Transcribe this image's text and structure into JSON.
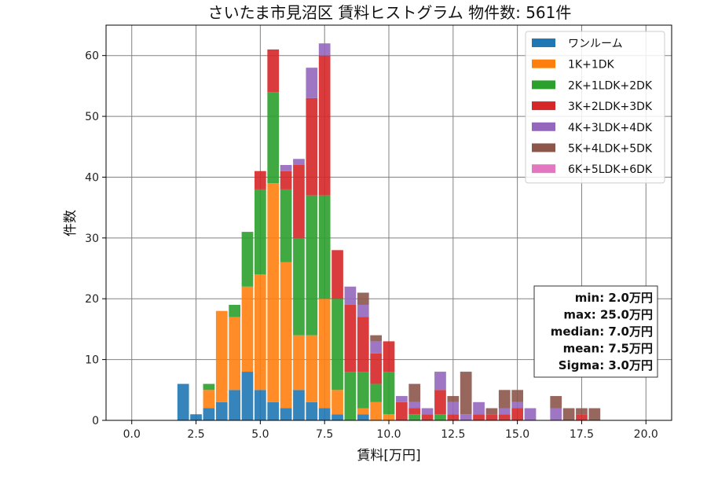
{
  "chart_data": {
    "type": "bar",
    "stacked": true,
    "title": "さいたま市見沼区 賃料ヒストグラム 物件数: 561件",
    "xlabel": "賃料[万円]",
    "ylabel": "件数",
    "xlim": [
      -1.0,
      21.0
    ],
    "ylim": [
      0,
      65
    ],
    "xticks": [
      "0.0",
      "2.5",
      "5.0",
      "7.5",
      "10.0",
      "12.5",
      "15.0",
      "17.5",
      "20.0"
    ],
    "yticks": [
      "0",
      "10",
      "20",
      "30",
      "40",
      "50",
      "60"
    ],
    "grid": true,
    "legend_position": "top-right",
    "x": [
      2.0,
      2.5,
      3.0,
      3.5,
      4.0,
      4.5,
      5.0,
      5.5,
      6.0,
      6.5,
      7.0,
      7.5,
      8.0,
      8.5,
      9.0,
      9.5,
      10.0,
      10.5,
      11.0,
      11.5,
      12.0,
      12.5,
      13.0,
      13.5,
      14.0,
      14.5,
      15.0,
      15.5,
      16.0,
      16.5,
      17.0,
      17.5,
      18.0
    ],
    "series": [
      {
        "name": "ワンルーム",
        "color": "#1f77b4",
        "values": [
          6,
          1,
          2,
          3,
          5,
          8,
          5,
          3,
          2,
          5,
          3,
          2,
          1,
          0,
          1,
          0,
          0,
          0,
          0,
          0,
          0,
          0,
          0,
          0,
          0,
          0,
          0,
          0,
          0,
          0,
          0,
          0,
          0
        ]
      },
      {
        "name": "1K+1DK",
        "color": "#ff7f0e",
        "values": [
          0,
          0,
          3,
          15,
          12,
          14,
          19,
          36,
          24,
          9,
          11,
          18,
          4,
          0,
          1,
          3,
          1,
          0,
          0,
          0,
          0,
          0,
          0,
          0,
          0,
          0,
          0,
          0,
          0,
          0,
          0,
          0,
          0
        ]
      },
      {
        "name": "2K+1LDK+2DK",
        "color": "#2ca02c",
        "values": [
          0,
          0,
          1,
          0,
          2,
          9,
          14,
          15,
          12,
          16,
          23,
          17,
          15,
          8,
          6,
          3,
          7,
          0,
          1,
          0,
          1,
          0,
          0,
          0,
          0,
          0,
          0,
          0,
          0,
          0,
          0,
          0,
          0
        ]
      },
      {
        "name": "3K+2LDK+3DK",
        "color": "#d62728",
        "values": [
          0,
          0,
          0,
          0,
          0,
          0,
          3,
          7,
          3,
          12,
          16,
          23,
          8,
          11,
          9,
          5,
          5,
          3,
          1,
          1,
          4,
          1,
          0,
          1,
          1,
          1,
          2,
          0,
          0,
          0,
          0,
          1,
          0
        ]
      },
      {
        "name": "4K+3LDK+4DK",
        "color": "#9467bd",
        "values": [
          0,
          0,
          0,
          0,
          0,
          0,
          0,
          0,
          1,
          1,
          5,
          2,
          0,
          3,
          2,
          2,
          0,
          1,
          1,
          1,
          3,
          2,
          1,
          2,
          0,
          1,
          1,
          2,
          0,
          2,
          0,
          0,
          0
        ]
      },
      {
        "name": "5K+4LDK+5DK",
        "color": "#8c564b",
        "values": [
          0,
          0,
          0,
          0,
          0,
          0,
          0,
          0,
          0,
          0,
          0,
          0,
          0,
          0,
          2,
          1,
          0,
          0,
          3,
          0,
          0,
          1,
          7,
          0,
          1,
          3,
          2,
          0,
          0,
          2,
          2,
          1,
          2
        ]
      },
      {
        "name": "6K+5LDK+6DK",
        "color": "#e377c2",
        "values": [
          0,
          0,
          0,
          0,
          0,
          0,
          0,
          0,
          0,
          0,
          0,
          0,
          0,
          0,
          0,
          0,
          0,
          0,
          0,
          0,
          0,
          0,
          0,
          0,
          0,
          0,
          0,
          0,
          0,
          0,
          0,
          0,
          0
        ]
      }
    ],
    "stats": [
      "min: 2.0万円",
      "max: 25.0万円",
      "median: 7.0万円",
      "mean: 7.5万円",
      "Sigma: 3.0万円"
    ]
  }
}
